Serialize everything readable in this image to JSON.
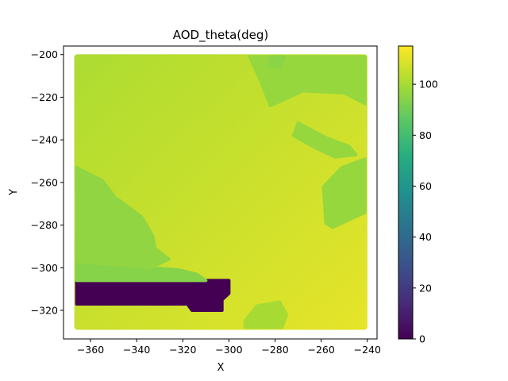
{
  "chart_data": {
    "type": "heatmap",
    "title": "AOD_theta(deg)",
    "xlabel": "X",
    "ylabel": "Y",
    "xlim": [
      -371.7,
      -235.8
    ],
    "ylim": [
      -333.4,
      -196.0
    ],
    "x_ticks": [
      -360,
      -340,
      -320,
      -300,
      -280,
      -260,
      -240
    ],
    "y_ticks": [
      -200,
      -220,
      -240,
      -260,
      -280,
      -300,
      -320
    ],
    "x_tick_labels": [
      "−360",
      "−340",
      "−320",
      "−300",
      "−280",
      "−260",
      "−240"
    ],
    "y_tick_labels": [
      "−200",
      "−220",
      "−240",
      "−260",
      "−280",
      "−300",
      "−320"
    ],
    "colorbar": {
      "colormap": "viridis",
      "range": [
        0,
        115
      ],
      "ticks": [
        0,
        20,
        40,
        60,
        80,
        100
      ],
      "tick_labels": [
        "0",
        "20",
        "40",
        "60",
        "80",
        "100"
      ]
    },
    "data_extent": {
      "x": [
        -366,
        -241
      ],
      "y": [
        -328,
        -201
      ]
    },
    "field": {
      "description_of_values": "AOD_theta in degrees over the X-Y grid",
      "base_gradient": {
        "top_left": 101,
        "bottom_right": 111
      },
      "regions": [
        {
          "name": "low-value block",
          "value": 0,
          "polygon": [
            [
              -366,
              -306
            ],
            [
              -300,
              -306
            ],
            [
              -300,
              -312
            ],
            [
              -303,
              -315
            ],
            [
              -303,
              -320
            ],
            [
              -316,
              -320
            ],
            [
              -318,
              -317
            ],
            [
              -366,
              -317
            ]
          ]
        },
        {
          "name": "left lower band",
          "value": 94,
          "polygon": [
            [
              -366,
              -297
            ],
            [
              -334,
              -300
            ],
            [
              -322,
              -301
            ],
            [
              -314,
              -303
            ],
            [
              -310,
              -306
            ],
            [
              -366,
              -306
            ]
          ]
        },
        {
          "name": "left middle band",
          "value": 96,
          "polygon": [
            [
              -366,
              -254
            ],
            [
              -358,
              -262
            ],
            [
              -348,
              -268
            ],
            [
              -338,
              -276
            ],
            [
              -333,
              -285
            ],
            [
              -332,
              -291
            ],
            [
              -326,
              -296
            ],
            [
              -334,
              -300
            ],
            [
              -366,
              -297
            ]
          ]
        },
        {
          "name": "left wedge",
          "value": 96,
          "polygon": [
            [
              -366,
              -253
            ],
            [
              -355,
              -259
            ],
            [
              -350,
              -266
            ],
            [
              -357,
              -262
            ],
            [
              -366,
              -257
            ]
          ]
        },
        {
          "name": "top right region",
          "value": 97,
          "polygon": [
            [
              -291,
              -201
            ],
            [
              -241,
              -201
            ],
            [
              -241,
              -223
            ],
            [
              -250,
              -218
            ],
            [
              -268,
              -217
            ],
            [
              -282,
              -224
            ],
            [
              -286,
              -213
            ]
          ]
        },
        {
          "name": "right vertical region",
          "value": 97,
          "polygon": [
            [
              -251,
              -253
            ],
            [
              -241,
              -249
            ],
            [
              -241,
              -274
            ],
            [
              -255,
              -281
            ],
            [
              -258,
              -279
            ],
            [
              -259,
              -262
            ]
          ]
        },
        {
          "name": "right strip",
          "value": 97,
          "polygon": [
            [
              -270,
              -232
            ],
            [
              -258,
              -239
            ],
            [
              -248,
              -243
            ],
            [
              -245,
              -247
            ],
            [
              -254,
              -248
            ],
            [
              -262,
              -244
            ],
            [
              -272,
              -238
            ]
          ]
        },
        {
          "name": "small top patch",
          "value": 95,
          "polygon": [
            [
              -282,
              -201
            ],
            [
              -276,
              -201
            ],
            [
              -278,
              -206
            ],
            [
              -283,
              -205
            ]
          ]
        },
        {
          "name": "bottom patch",
          "value": 100,
          "polygon": [
            [
              -293,
              -325
            ],
            [
              -288,
              -318
            ],
            [
              -278,
              -316
            ],
            [
              -275,
              -322
            ],
            [
              -277,
              -328
            ],
            [
              -293,
              -328
            ]
          ]
        }
      ]
    }
  }
}
